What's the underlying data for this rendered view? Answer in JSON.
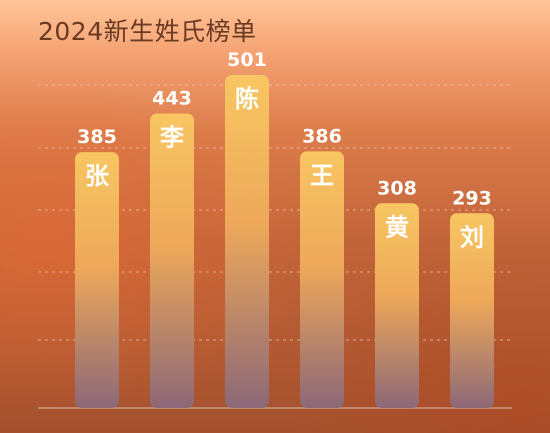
{
  "title": "2024新生姓氏榜单",
  "chart_data": {
    "type": "bar",
    "title": "2024新生姓氏榜单",
    "categories": [
      "张",
      "李",
      "陈",
      "王",
      "黄",
      "刘"
    ],
    "values": [
      385,
      443,
      501,
      386,
      308,
      293
    ],
    "grid": true,
    "colors": {
      "bar_top": "#f8c662",
      "bar_bottom": "#8c6878"
    }
  }
}
